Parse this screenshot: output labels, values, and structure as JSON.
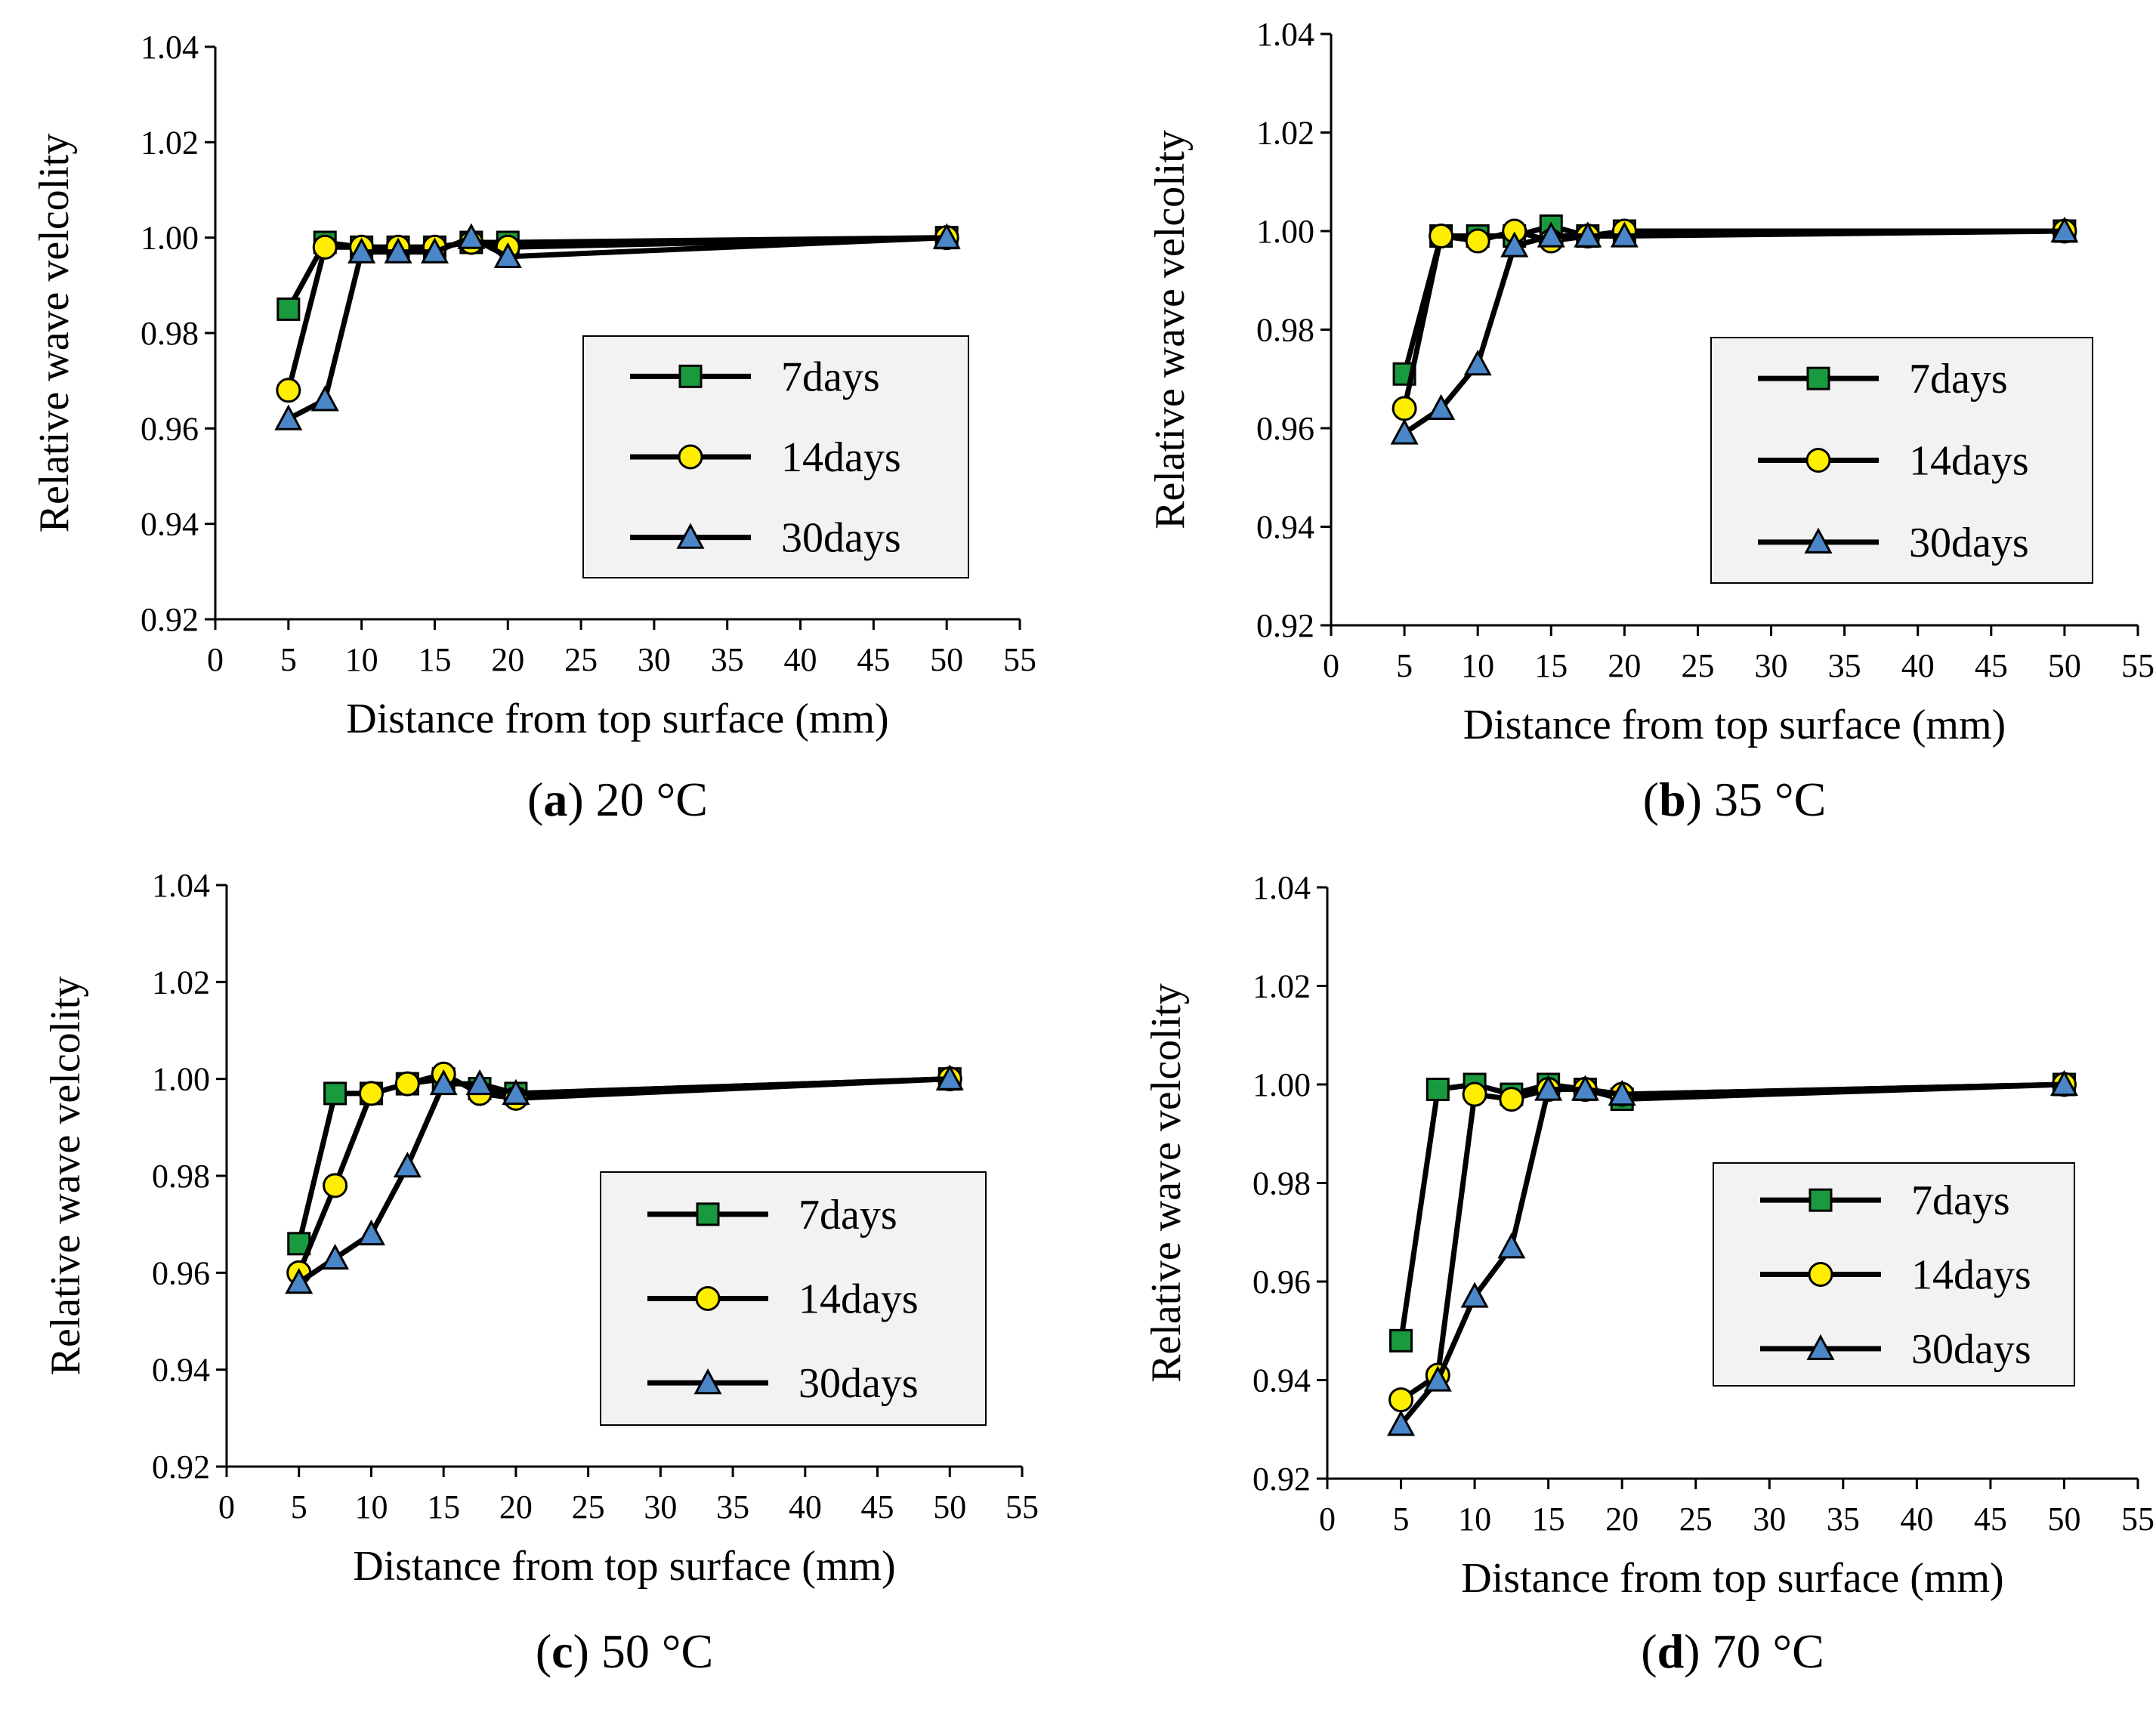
{
  "chart_data": [
    {
      "type": "line",
      "panel": "a",
      "caption_letter": "a",
      "caption_text": "20 °C",
      "xlabel": "Distance from top surface (mm)",
      "ylabel": "Relative wave velcolity",
      "xlim": [
        0,
        55
      ],
      "ylim": [
        0.92,
        1.04
      ],
      "xticks": [
        "0",
        "5",
        "10",
        "15",
        "20",
        "25",
        "30",
        "35",
        "40",
        "45",
        "50",
        "55"
      ],
      "yticks": [
        "0.92",
        "0.94",
        "0.96",
        "0.98",
        "1.00",
        "1.02",
        "1.04"
      ],
      "series": [
        {
          "name": "7days",
          "marker": "square",
          "color": "#1a9a3e",
          "x": [
            5,
            7.5,
            10,
            12.5,
            15,
            17.5,
            20,
            50
          ],
          "y": [
            0.985,
            0.999,
            0.998,
            0.998,
            0.998,
            0.999,
            0.999,
            1.0
          ]
        },
        {
          "name": "14days",
          "marker": "circle",
          "color": "#ffee00",
          "x": [
            5,
            7.5,
            10,
            12.5,
            15,
            17.5,
            20,
            50
          ],
          "y": [
            0.968,
            0.998,
            0.998,
            0.998,
            0.998,
            0.999,
            0.998,
            1.0
          ]
        },
        {
          "name": "30days",
          "marker": "triangle",
          "color": "#4a86c8",
          "x": [
            5,
            7.5,
            10,
            12.5,
            15,
            17.5,
            20,
            50
          ],
          "y": [
            0.962,
            0.966,
            0.997,
            0.997,
            0.997,
            1.0,
            0.996,
            1.0
          ]
        }
      ]
    },
    {
      "type": "line",
      "panel": "b",
      "caption_letter": "b",
      "caption_text": "35 °C",
      "xlabel": "Distance from top surface (mm)",
      "ylabel": "Relative wave velcolity",
      "xlim": [
        0,
        55
      ],
      "ylim": [
        0.92,
        1.04
      ],
      "xticks": [
        "0",
        "5",
        "10",
        "15",
        "20",
        "25",
        "30",
        "35",
        "40",
        "45",
        "50",
        "55"
      ],
      "yticks": [
        "0.92",
        "0.94",
        "0.96",
        "0.98",
        "1.00",
        "1.02",
        "1.04"
      ],
      "series": [
        {
          "name": "7days",
          "marker": "square",
          "color": "#1a9a3e",
          "x": [
            5,
            7.5,
            10,
            12.5,
            15,
            17.5,
            20,
            50
          ],
          "y": [
            0.971,
            0.999,
            0.999,
            0.999,
            1.001,
            0.999,
            1.0,
            1.0
          ]
        },
        {
          "name": "14days",
          "marker": "circle",
          "color": "#ffee00",
          "x": [
            5,
            7.5,
            10,
            12.5,
            15,
            17.5,
            20,
            50
          ],
          "y": [
            0.964,
            0.999,
            0.998,
            1.0,
            0.998,
            0.999,
            1.0,
            1.0
          ]
        },
        {
          "name": "30days",
          "marker": "triangle",
          "color": "#4a86c8",
          "x": [
            5,
            7.5,
            10,
            12.5,
            15,
            17.5,
            20,
            50
          ],
          "y": [
            0.959,
            0.964,
            0.973,
            0.997,
            0.999,
            0.999,
            0.999,
            1.0
          ]
        }
      ]
    },
    {
      "type": "line",
      "panel": "c",
      "caption_letter": "c",
      "caption_text": "50 °C",
      "xlabel": "Distance from top surface (mm)",
      "ylabel": "Relative wave velcolity",
      "xlim": [
        0,
        55
      ],
      "ylim": [
        0.92,
        1.04
      ],
      "xticks": [
        "0",
        "5",
        "10",
        "15",
        "20",
        "25",
        "30",
        "35",
        "40",
        "45",
        "50",
        "55"
      ],
      "yticks": [
        "0.92",
        "0.94",
        "0.96",
        "0.98",
        "1.00",
        "1.02",
        "1.04"
      ],
      "series": [
        {
          "name": "7days",
          "marker": "square",
          "color": "#1a9a3e",
          "x": [
            5,
            7.5,
            10,
            12.5,
            15,
            17.5,
            20,
            50
          ],
          "y": [
            0.966,
            0.997,
            0.997,
            0.999,
            1.0,
            0.998,
            0.997,
            1.0
          ]
        },
        {
          "name": "14days",
          "marker": "circle",
          "color": "#ffee00",
          "x": [
            5,
            7.5,
            10,
            12.5,
            15,
            17.5,
            20,
            50
          ],
          "y": [
            0.96,
            0.978,
            0.997,
            0.999,
            1.001,
            0.997,
            0.996,
            1.0
          ]
        },
        {
          "name": "30days",
          "marker": "triangle",
          "color": "#4a86c8",
          "x": [
            5,
            7.5,
            10,
            12.5,
            15,
            17.5,
            20,
            50
          ],
          "y": [
            0.958,
            0.963,
            0.968,
            0.982,
            0.999,
            0.999,
            0.997,
            1.0
          ]
        }
      ]
    },
    {
      "type": "line",
      "panel": "d",
      "caption_letter": "d",
      "caption_text": "70 °C",
      "xlabel": "Distance from top surface (mm)",
      "ylabel": "Relative wave velcolity",
      "xlim": [
        0,
        55
      ],
      "ylim": [
        0.92,
        1.04
      ],
      "xticks": [
        "0",
        "5",
        "10",
        "15",
        "20",
        "25",
        "30",
        "35",
        "40",
        "45",
        "50",
        "55"
      ],
      "yticks": [
        "0.92",
        "0.94",
        "0.96",
        "0.98",
        "1.00",
        "1.02",
        "1.04"
      ],
      "series": [
        {
          "name": "7days",
          "marker": "square",
          "color": "#1a9a3e",
          "x": [
            5,
            7.5,
            10,
            12.5,
            15,
            17.5,
            20,
            50
          ],
          "y": [
            0.948,
            0.999,
            1.0,
            0.998,
            1.0,
            0.999,
            0.997,
            1.0
          ]
        },
        {
          "name": "14days",
          "marker": "circle",
          "color": "#ffee00",
          "x": [
            5,
            7.5,
            10,
            12.5,
            15,
            17.5,
            20,
            50
          ],
          "y": [
            0.936,
            0.941,
            0.998,
            0.997,
            0.999,
            0.999,
            0.998,
            1.0
          ]
        },
        {
          "name": "30days",
          "marker": "triangle",
          "color": "#4a86c8",
          "x": [
            5,
            7.5,
            10,
            12.5,
            15,
            17.5,
            20,
            50
          ],
          "y": [
            0.931,
            0.94,
            0.957,
            0.967,
            0.999,
            0.999,
            0.998,
            1.0
          ]
        }
      ]
    }
  ]
}
